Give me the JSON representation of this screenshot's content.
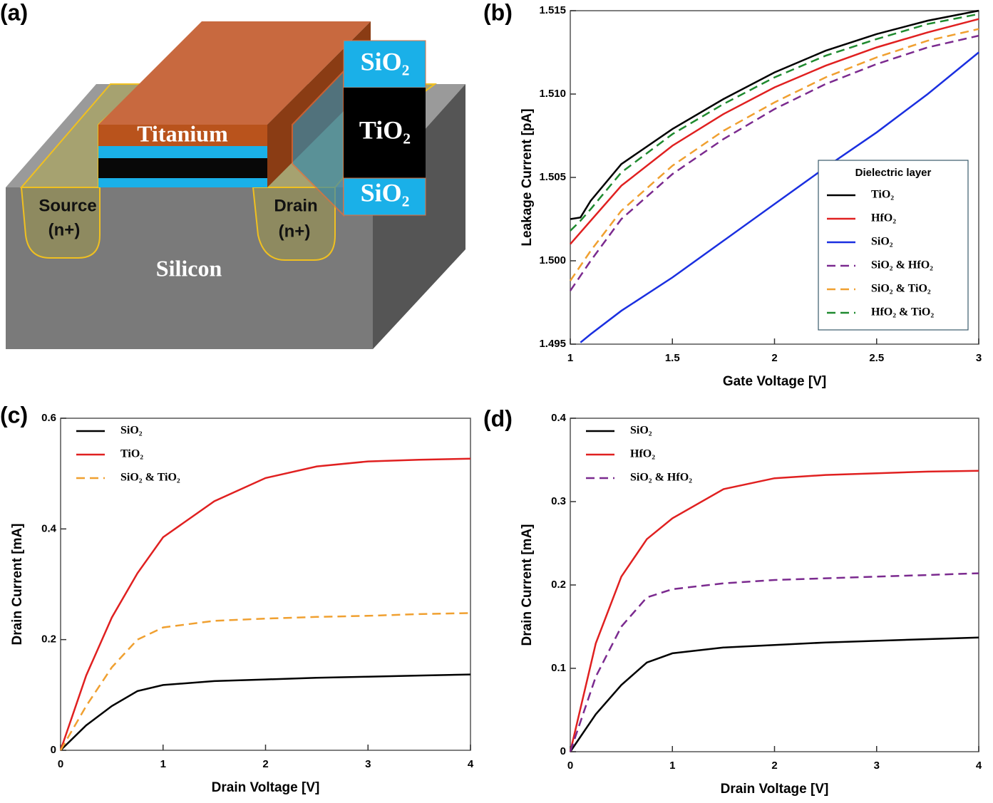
{
  "diagram": {
    "panel_label": "(a)",
    "labels": [
      "Titanium",
      "SiO₂",
      "TiO₂",
      "SiO₂",
      "Source",
      "(n+)",
      "Drain",
      "(n+)",
      "Silicon"
    ]
  },
  "chart_data": [
    {
      "type": "line",
      "panel_label": "(b)",
      "x_label": "Gate Voltage [V]",
      "y_label": "Leakage Current [pA]",
      "x": [
        1,
        1.05,
        1.1,
        1.25,
        1.5,
        1.75,
        2,
        2.25,
        2.5,
        2.75,
        3
      ],
      "xlim": [
        1,
        3
      ],
      "xticks": [
        1,
        1.5,
        2,
        2.5,
        3
      ],
      "ylim": [
        1.495,
        1.515
      ],
      "yticks": [
        1.495,
        {
          "value": 1.5,
          "label": "1.500"
        },
        1.505,
        {
          "value": 1.51,
          "label": "1.510"
        },
        1.515
      ],
      "legend_title": "Dielectric layer",
      "legend": "lower right",
      "series": [
        {
          "name": "TiO₂",
          "color": "#000000",
          "dashed": false,
          "values": [
            1.5025,
            1.5026,
            1.5036,
            1.5058,
            1.5079,
            1.5097,
            1.5113,
            1.5126,
            1.5136,
            1.5144,
            1.515
          ]
        },
        {
          "name": "HfO₂",
          "color": "#e02020",
          "dashed": false,
          "values": [
            1.501,
            1.5017,
            1.5024,
            1.5045,
            1.5069,
            1.5088,
            1.5104,
            1.5117,
            1.5128,
            1.5137,
            1.5145
          ]
        },
        {
          "name": "SiO₂",
          "color": "#1a2fe0",
          "dashed": false,
          "values": [
            null,
            1.4951,
            1.4956,
            1.497,
            1.499,
            1.5012,
            1.5034,
            1.5056,
            1.5077,
            1.51,
            1.5125
          ]
        },
        {
          "name": "SiO₂ & HfO₂",
          "color": "#7b2a8f",
          "dashed": true,
          "values": [
            1.4982,
            1.4991,
            1.5,
            1.5025,
            1.5052,
            1.5073,
            1.5091,
            1.5106,
            1.5118,
            1.5128,
            1.5135
          ]
        },
        {
          "name": "SiO₂ & TiO₂",
          "color": "#f0a030",
          "dashed": true,
          "values": [
            1.4988,
            1.4997,
            1.5006,
            1.503,
            1.5057,
            1.5078,
            1.5095,
            1.511,
            1.5122,
            1.5132,
            1.5139
          ]
        },
        {
          "name": "HfO₂ & TiO₂",
          "color": "#1f8a2f",
          "dashed": true,
          "values": [
            1.5018,
            1.5024,
            1.5031,
            1.5053,
            1.5076,
            1.5094,
            1.511,
            1.5123,
            1.5133,
            1.5142,
            1.5148
          ]
        }
      ]
    },
    {
      "type": "line",
      "panel_label": "(c)",
      "x_label": "Drain Voltage [V]",
      "y_label": "Drain Current [mA]",
      "x": [
        0,
        0.25,
        0.5,
        0.75,
        1,
        1.5,
        2,
        2.5,
        3,
        3.5,
        4
      ],
      "xlim": [
        0,
        4
      ],
      "xticks": [
        0,
        1,
        2,
        3,
        4
      ],
      "ylim": [
        0,
        0.6
      ],
      "yticks": [
        0,
        0.2,
        0.4,
        0.6
      ],
      "legend": "upper left",
      "series": [
        {
          "name": "SiO₂",
          "color": "#000000",
          "dashed": false,
          "values": [
            0,
            0.045,
            0.08,
            0.107,
            0.118,
            0.125,
            0.128,
            0.131,
            0.133,
            0.135,
            0.137
          ]
        },
        {
          "name": "TiO₂",
          "color": "#e02020",
          "dashed": false,
          "values": [
            0,
            0.135,
            0.24,
            0.32,
            0.385,
            0.45,
            0.492,
            0.513,
            0.522,
            0.525,
            0.527
          ]
        },
        {
          "name": "SiO₂ & TiO₂",
          "color": "#f0a030",
          "dashed": true,
          "values": [
            0,
            0.08,
            0.15,
            0.2,
            0.222,
            0.234,
            0.238,
            0.241,
            0.243,
            0.246,
            0.248
          ]
        }
      ]
    },
    {
      "type": "line",
      "panel_label": "(d)",
      "x_label": "Drain Voltage [V]",
      "y_label": "Drain Current [mA]",
      "x": [
        0,
        0.25,
        0.5,
        0.75,
        1,
        1.5,
        2,
        2.5,
        3,
        3.5,
        4
      ],
      "xlim": [
        0,
        4
      ],
      "xticks": [
        0,
        1,
        2,
        3,
        4
      ],
      "ylim": [
        0,
        0.4
      ],
      "yticks": [
        0,
        0.1,
        0.2,
        0.3,
        0.4
      ],
      "legend": "upper left",
      "series": [
        {
          "name": "SiO₂",
          "color": "#000000",
          "dashed": false,
          "values": [
            0,
            0.045,
            0.08,
            0.107,
            0.118,
            0.125,
            0.128,
            0.131,
            0.133,
            0.135,
            0.137
          ]
        },
        {
          "name": "HfO₂",
          "color": "#e02020",
          "dashed": false,
          "values": [
            0,
            0.13,
            0.21,
            0.255,
            0.28,
            0.315,
            0.328,
            0.332,
            0.334,
            0.336,
            0.337
          ]
        },
        {
          "name": "SiO₂ & HfO₂",
          "color": "#7b2a8f",
          "dashed": true,
          "values": [
            0,
            0.09,
            0.15,
            0.185,
            0.195,
            0.202,
            0.206,
            0.208,
            0.21,
            0.212,
            0.214
          ]
        }
      ]
    }
  ]
}
